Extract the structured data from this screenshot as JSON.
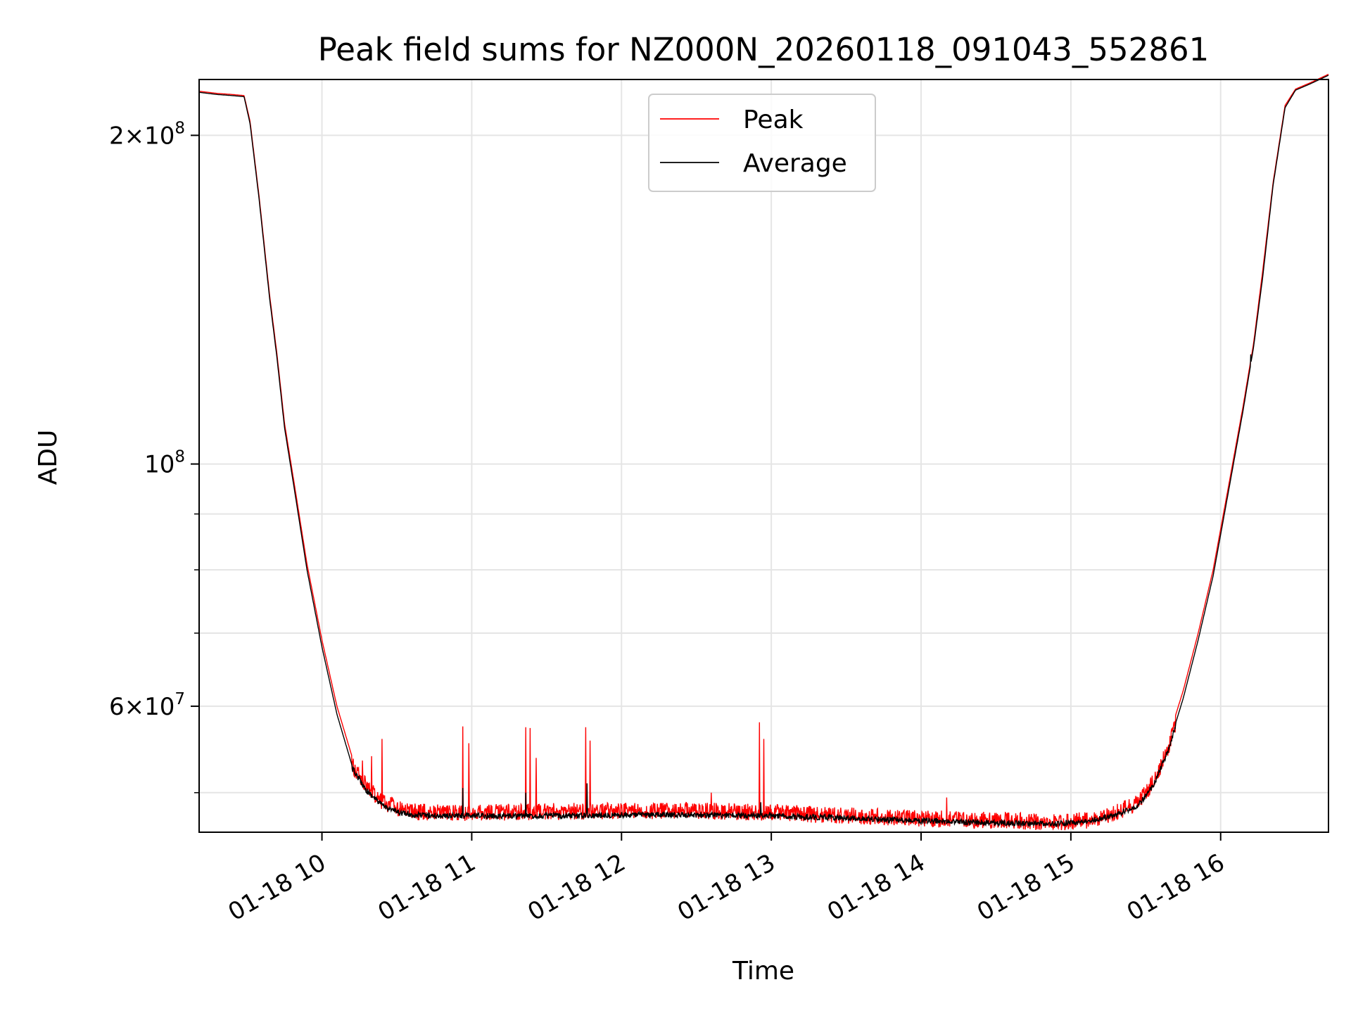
{
  "chart_data": {
    "type": "line",
    "title": "Peak field sums for NZ000N_20260118_091043_552861",
    "xlabel": "Time",
    "ylabel": "ADU",
    "y_scale": "log",
    "ylim": [
      46000000,
      225000000
    ],
    "xlim_hours": [
      9.18,
      16.72
    ],
    "x_ticks": [
      {
        "hour": 10,
        "label": "01-18 10"
      },
      {
        "hour": 11,
        "label": "01-18 11"
      },
      {
        "hour": 12,
        "label": "01-18 12"
      },
      {
        "hour": 13,
        "label": "01-18 13"
      },
      {
        "hour": 14,
        "label": "01-18 14"
      },
      {
        "hour": 15,
        "label": "01-18 15"
      },
      {
        "hour": 16,
        "label": "01-18 16"
      }
    ],
    "y_major_ticks": [
      {
        "value": 60000000,
        "mantissa": "6",
        "exponent": "7"
      },
      {
        "value": 100000000,
        "mantissa": "",
        "exponent": "8"
      },
      {
        "value": 200000000,
        "mantissa": "2",
        "exponent": "8"
      }
    ],
    "y_minor_ticks": [
      50000000,
      70000000,
      80000000,
      90000000
    ],
    "legend": {
      "position": "upper-center",
      "entries": [
        {
          "label": "Peak",
          "color": "#ff0000"
        },
        {
          "label": "Average",
          "color": "#000000"
        }
      ]
    },
    "grid": true,
    "series": [
      {
        "name": "Average",
        "color": "#000000",
        "x_hours": [
          9.18,
          9.3,
          9.4,
          9.48,
          9.52,
          9.58,
          9.65,
          9.7,
          9.75,
          9.82,
          9.9,
          10.0,
          10.1,
          10.2,
          10.3,
          10.4,
          10.5,
          10.6,
          10.8,
          11.0,
          11.5,
          12.0,
          12.5,
          13.0,
          13.5,
          14.0,
          14.5,
          14.9,
          15.1,
          15.3,
          15.45,
          15.55,
          15.65,
          15.75,
          15.85,
          15.95,
          16.05,
          16.15,
          16.22,
          16.28,
          16.35,
          16.43,
          16.5,
          16.6,
          16.72
        ],
        "values": [
          219000000,
          218000000,
          217500000,
          217000000,
          205000000,
          175000000,
          142000000,
          125000000,
          108000000,
          94000000,
          80000000,
          68000000,
          59000000,
          53000000,
          50500000,
          49000000,
          48300000,
          48000000,
          47900000,
          47900000,
          47900000,
          48000000,
          48000000,
          47900000,
          47700000,
          47400000,
          47200000,
          47100000,
          47300000,
          48000000,
          49000000,
          51000000,
          55000000,
          61000000,
          69000000,
          79000000,
          94000000,
          112000000,
          128000000,
          148000000,
          180000000,
          212000000,
          220000000,
          223000000,
          227000000
        ]
      },
      {
        "name": "Peak",
        "color": "#ff0000",
        "x_hours": [
          9.18,
          9.3,
          9.4,
          9.48,
          9.52,
          9.58,
          9.65,
          9.7,
          9.75,
          9.82,
          9.9,
          10.0,
          10.1,
          10.2,
          10.3,
          10.4,
          10.5,
          10.6,
          10.8,
          11.0,
          11.5,
          12.0,
          12.5,
          13.0,
          13.5,
          14.0,
          14.5,
          14.9,
          15.1,
          15.3,
          15.45,
          15.55,
          15.65,
          15.75,
          15.85,
          15.95,
          16.05,
          16.15,
          16.22,
          16.28,
          16.35,
          16.43,
          16.5,
          16.6,
          16.72
        ],
        "values": [
          219500000,
          218500000,
          218000000,
          217500000,
          206000000,
          176000000,
          143000000,
          126000000,
          109000000,
          95000000,
          81000000,
          69000000,
          60000000,
          54000000,
          51500000,
          50000000,
          49300000,
          48900000,
          48800000,
          48800000,
          48900000,
          49000000,
          49000000,
          48800000,
          48500000,
          48200000,
          48000000,
          47800000,
          48000000,
          48800000,
          49900000,
          52000000,
          56000000,
          62000000,
          70000000,
          80000000,
          95000000,
          113000000,
          129000000,
          150000000,
          181000000,
          213000000,
          220500000,
          223500000,
          227500000
        ]
      }
    ],
    "peak_spikes": [
      {
        "hour": 10.27,
        "value": 53500000
      },
      {
        "hour": 10.33,
        "value": 54000000
      },
      {
        "hour": 10.4,
        "value": 56000000
      },
      {
        "hour": 10.94,
        "value": 57500000
      },
      {
        "hour": 10.98,
        "value": 55500000
      },
      {
        "hour": 11.36,
        "value": 57400000
      },
      {
        "hour": 11.39,
        "value": 57300000
      },
      {
        "hour": 11.43,
        "value": 53800000
      },
      {
        "hour": 11.76,
        "value": 57400000
      },
      {
        "hour": 11.79,
        "value": 55800000
      },
      {
        "hour": 12.6,
        "value": 50000000
      },
      {
        "hour": 12.92,
        "value": 58000000
      },
      {
        "hour": 12.95,
        "value": 56000000
      },
      {
        "hour": 14.17,
        "value": 49500000
      },
      {
        "hour": 15.92,
        "value": 75000000
      }
    ],
    "average_spikes": [
      {
        "hour": 10.94,
        "value": 50500000
      },
      {
        "hour": 11.36,
        "value": 50000000
      },
      {
        "hour": 11.77,
        "value": 51000000
      },
      {
        "hour": 12.93,
        "value": 49000000
      },
      {
        "hour": 16.2,
        "value": 126000000
      }
    ]
  }
}
